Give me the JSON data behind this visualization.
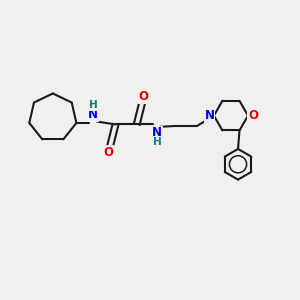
{
  "bg_color": "#f0f0f0",
  "bond_color": "#1a1a1a",
  "N_color": "#0000ee",
  "O_color": "#ee0000",
  "H_color": "#008080",
  "line_width": 1.5,
  "font_size_atom": 8.5,
  "fig_size": [
    3.0,
    3.0
  ],
  "dpi": 100,
  "xlim": [
    0,
    10
  ],
  "ylim": [
    0,
    10
  ]
}
